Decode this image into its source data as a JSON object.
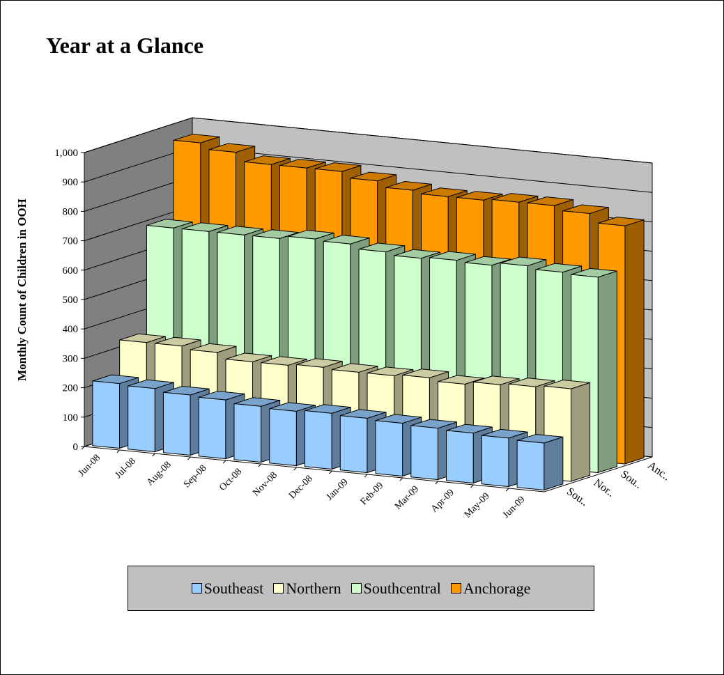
{
  "chart_data": {
    "type": "bar3d",
    "title": "Year at a Glance",
    "y_label": "Monthly Count of Children in OOH",
    "categories": [
      "Jun-08",
      "Jul-08",
      "Aug-08",
      "Sep-08",
      "Oct-08",
      "Nov-08",
      "Dec-08",
      "Jan-09",
      "Feb-09",
      "Mar-09",
      "Apr-09",
      "May-09",
      "Jun-09"
    ],
    "depth_labels": [
      "Sou..",
      "Nor..",
      "Sou..",
      "Anc.."
    ],
    "series": [
      {
        "name": "Southeast",
        "color": "#99ccff",
        "values": [
          220,
          215,
          205,
          200,
          190,
          185,
          190,
          185,
          180,
          175,
          170,
          165,
          160
        ]
      },
      {
        "name": "Northern",
        "color": "#ffffcc",
        "values": [
          330,
          330,
          320,
          300,
          300,
          305,
          300,
          300,
          305,
          295,
          305,
          310,
          315
        ]
      },
      {
        "name": "Southcentral",
        "color": "#ccffcc",
        "values": [
          690,
          690,
          690,
          690,
          700,
          695,
          680,
          670,
          675,
          670,
          680,
          670,
          665
        ]
      },
      {
        "name": "Anchorage",
        "color": "#ff9900",
        "values": [
          950,
          930,
          900,
          900,
          900,
          880,
          860,
          850,
          850,
          855,
          855,
          840,
          810
        ]
      }
    ],
    "ylim": [
      0,
      1000
    ],
    "yticks": [
      0,
      100,
      200,
      300,
      400,
      500,
      600,
      700,
      800,
      900,
      {
        "value": 1000,
        "label": "1,000"
      }
    ],
    "grid": true
  }
}
